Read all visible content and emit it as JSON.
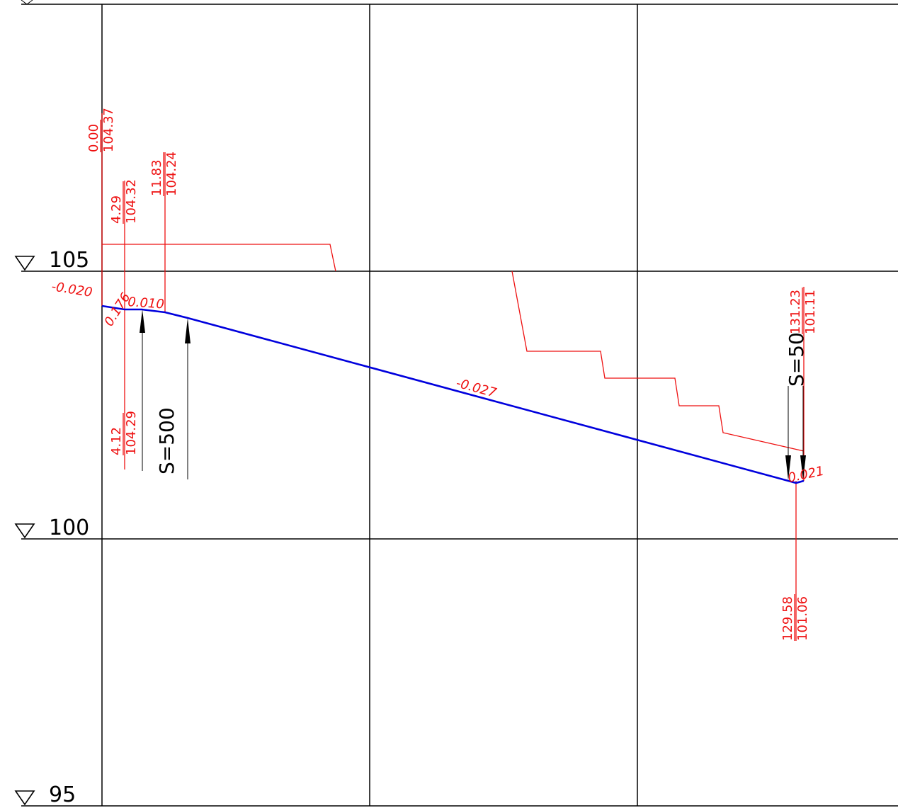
{
  "levels": [
    "105",
    "100",
    "95"
  ],
  "stations": {
    "s1_top": "0.00",
    "s1_bottom": "104.37",
    "s2_top": "4.29",
    "s2_bottom": "104.32",
    "s3_top": "11.83",
    "s3_bottom": "104.24",
    "s4_top": "4.12",
    "s4_bottom": "104.29",
    "s5_top": "131.23",
    "s5_bottom": "101.11",
    "s6_top": "129.58",
    "s6_bottom": "101.06"
  },
  "slopes": {
    "left": "-0.020",
    "a": "0.176",
    "b": "0.010",
    "main": "-0.027",
    "right": "0.021"
  },
  "curves": {
    "left": "S=500",
    "right": "S=50"
  },
  "colors": {
    "grid": "#000000",
    "annotation": "#ee1111",
    "profile": "#0000dd"
  }
}
